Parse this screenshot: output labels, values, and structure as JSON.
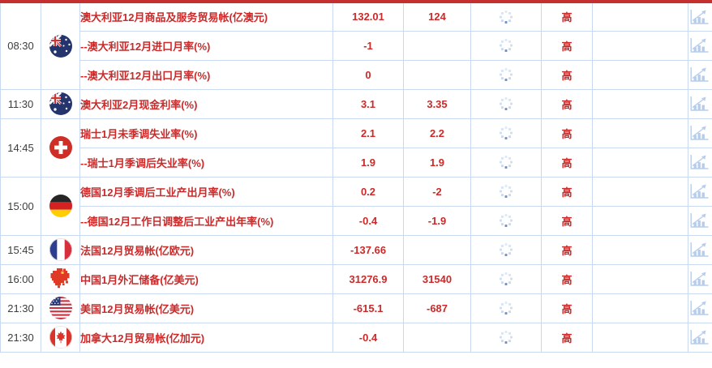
{
  "colors": {
    "top_border_red": "#c52f2f",
    "cell_border_blue": "#c9daf0",
    "text_red": "#cb2a2a",
    "time_text": "#3d3d3d",
    "icon_light_blue": "#b7cdeb",
    "spinner_dot_blue": "#c9d9f1",
    "spinner_dot_dark": "#6f92cf"
  },
  "icons": {
    "spinner": "loading-spinner-icon",
    "chart": "bar-chart-icon"
  },
  "table": {
    "importance_label": "高",
    "groups": [
      {
        "time": "08:30",
        "flag": "australia",
        "events": [
          {
            "name": "澳大利亚12月商品及服务贸易帐(亿澳元)",
            "actual": "132.01",
            "forecast": "124",
            "importance": "高"
          },
          {
            "name": "--澳大利亚12月进口月率(%)",
            "actual": "-1",
            "forecast": "",
            "importance": "高"
          },
          {
            "name": "--澳大利亚12月出口月率(%)",
            "actual": "0",
            "forecast": "",
            "importance": "高"
          }
        ]
      },
      {
        "time": "11:30",
        "flag": "australia",
        "events": [
          {
            "name": "澳大利亚2月现金利率(%)",
            "actual": "3.1",
            "forecast": "3.35",
            "importance": "高"
          }
        ]
      },
      {
        "time": "14:45",
        "flag": "switzerland",
        "events": [
          {
            "name": "瑞士1月未季调失业率(%)",
            "actual": "2.1",
            "forecast": "2.2",
            "importance": "高"
          },
          {
            "name": "--瑞士1月季调后失业率(%)",
            "actual": "1.9",
            "forecast": "1.9",
            "importance": "高"
          }
        ]
      },
      {
        "time": "15:00",
        "flag": "germany",
        "events": [
          {
            "name": "德国12月季调后工业产出月率(%)",
            "actual": "0.2",
            "forecast": "-2",
            "importance": "高"
          },
          {
            "name": "--德国12月工作日调整后工业产出年率(%)",
            "actual": "-0.4",
            "forecast": "-1.9",
            "importance": "高"
          }
        ]
      },
      {
        "time": "15:45",
        "flag": "france",
        "events": [
          {
            "name": "法国12月贸易帐(亿欧元)",
            "actual": "-137.66",
            "forecast": "",
            "importance": "高"
          }
        ]
      },
      {
        "time": "16:00",
        "flag": "china",
        "events": [
          {
            "name": "中国1月外汇储备(亿美元)",
            "actual": "31276.9",
            "forecast": "31540",
            "importance": "高"
          }
        ]
      },
      {
        "time": "21:30",
        "flag": "usa",
        "events": [
          {
            "name": "美国12月贸易帐(亿美元)",
            "actual": "-615.1",
            "forecast": "-687",
            "importance": "高"
          }
        ]
      },
      {
        "time": "21:30",
        "flag": "canada",
        "events": [
          {
            "name": "加拿大12月贸易帐(亿加元)",
            "actual": "-0.4",
            "forecast": "",
            "importance": "高"
          }
        ]
      }
    ]
  }
}
